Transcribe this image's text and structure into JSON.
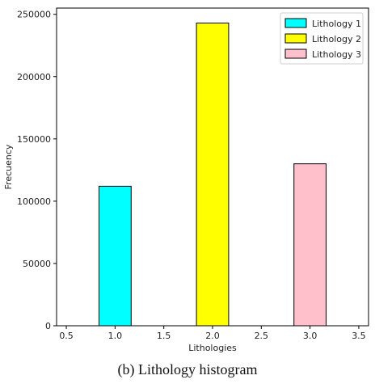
{
  "chart_data": {
    "type": "bar",
    "x": [
      1.0,
      2.0,
      3.0
    ],
    "series": [
      {
        "name": "Lithology 1",
        "x": 1.0,
        "value": 112000,
        "color": "#00ffff"
      },
      {
        "name": "Lithology 2",
        "x": 2.0,
        "value": 243000,
        "color": "#ffff00"
      },
      {
        "name": "Lithology 3",
        "x": 3.0,
        "value": 130000,
        "color": "#ffc0cb"
      }
    ],
    "bar_width": 0.33,
    "xlabel": "Lithologies",
    "ylabel": "Frecuency",
    "xlim": [
      0.4,
      3.6
    ],
    "ylim": [
      0,
      255000
    ],
    "xticks": [
      0.5,
      1.0,
      1.5,
      2.0,
      2.5,
      3.0,
      3.5
    ],
    "xtick_labels": [
      "0.5",
      "1.0",
      "1.5",
      "2.0",
      "2.5",
      "3.0",
      "3.5"
    ],
    "yticks": [
      0,
      50000,
      100000,
      150000,
      200000,
      250000
    ],
    "ytick_labels": [
      "0",
      "50000",
      "100000",
      "150000",
      "200000",
      "250000"
    ],
    "grid": false,
    "legend_position": "top-right"
  },
  "caption": "(b) Lithology histogram"
}
